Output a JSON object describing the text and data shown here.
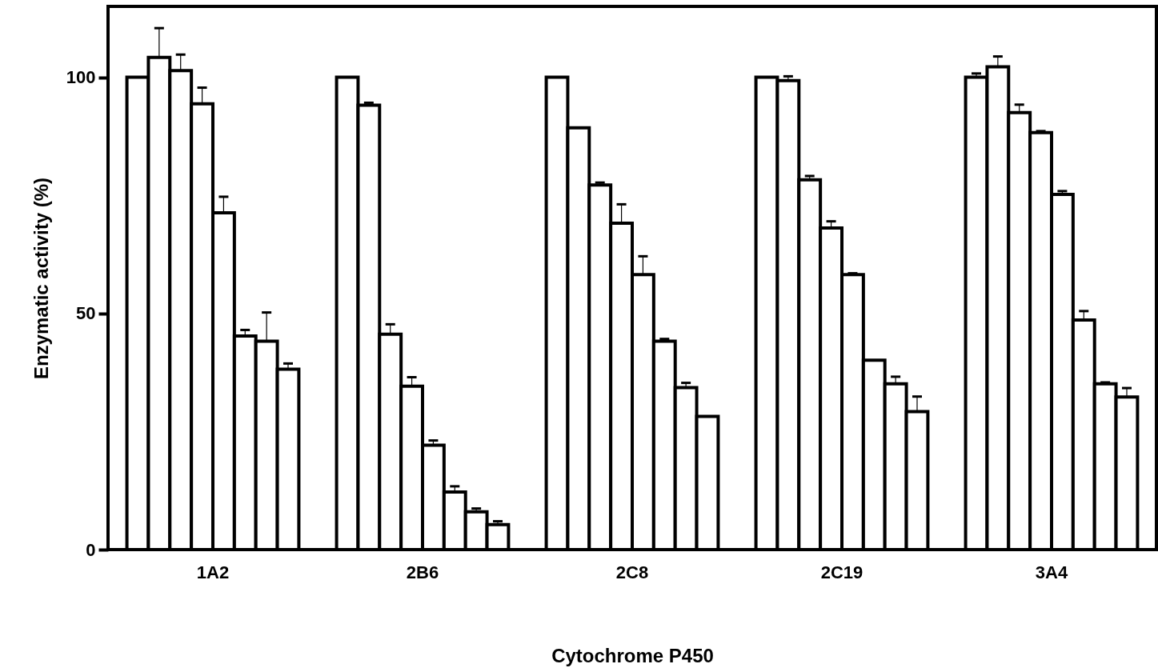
{
  "chart_data": {
    "type": "bar",
    "xlabel": "Cytochrome P450",
    "ylabel": "Enzymatic activity (%)",
    "categories": [
      "1A2",
      "2B6",
      "2C8",
      "2C19",
      "3A4"
    ],
    "ylim": [
      0,
      115
    ],
    "yticks": [
      0,
      50,
      100
    ],
    "series": [
      {
        "color": "#ffffff",
        "values": [
          100,
          100,
          100,
          100,
          100
        ],
        "errors": [
          null,
          null,
          null,
          null,
          [
            100,
            100.8
          ]
        ]
      },
      {
        "color": "#ffffff",
        "values": [
          104.2,
          94.1,
          89.3,
          99.3,
          102.2
        ],
        "errors": [
          [
            104.2,
            110.4
          ],
          [
            94.1,
            94.6
          ],
          null,
          [
            99.3,
            100.2
          ],
          [
            102.2,
            104.4
          ]
        ]
      },
      {
        "color": "#ffffff",
        "values": [
          101.4,
          45.6,
          77.2,
          78.3,
          92.5
        ],
        "errors": [
          [
            101.4,
            104.8
          ],
          [
            45.6,
            47.7
          ],
          [
            77.2,
            77.7
          ],
          [
            78.3,
            79.1
          ],
          [
            92.5,
            94.2
          ]
        ]
      },
      {
        "color": "#ffffff",
        "values": [
          94.4,
          34.6,
          69.1,
          68.1,
          88.3
        ],
        "errors": [
          [
            94.4,
            97.8
          ],
          [
            34.6,
            36.5
          ],
          [
            69.1,
            73.1
          ],
          [
            68.1,
            69.5
          ],
          [
            88.3,
            88.6
          ]
        ]
      },
      {
        "color": "#ffffff",
        "values": [
          71.3,
          22.1,
          58.2,
          58.2,
          75.2
        ],
        "errors": [
          [
            71.3,
            74.7
          ],
          [
            22.1,
            23.1
          ],
          [
            58.2,
            62.1
          ],
          [
            58.2,
            58.5
          ],
          [
            75.2,
            75.9
          ]
        ]
      },
      {
        "color": "#ffffff",
        "values": [
          45.2,
          12.2,
          44.1,
          40.1,
          48.6
        ],
        "errors": [
          [
            45.2,
            46.5
          ],
          [
            12.2,
            13.4
          ],
          [
            44.1,
            44.6
          ],
          null,
          [
            48.6,
            50.5
          ]
        ]
      },
      {
        "color": "#ffffff",
        "values": [
          44.1,
          8.0,
          34.3,
          35.1,
          35.1
        ],
        "errors": [
          [
            44.1,
            50.2
          ],
          [
            8.0,
            8.7
          ],
          [
            34.3,
            35.3
          ],
          [
            35.1,
            36.6
          ],
          [
            35.1,
            35.4
          ]
        ]
      },
      {
        "color": "#ffffff",
        "values": [
          38.2,
          5.3,
          28.2,
          29.2,
          32.3
        ],
        "errors": [
          [
            38.2,
            39.4
          ],
          [
            5.3,
            6.0
          ],
          null,
          [
            29.2,
            32.4
          ],
          [
            32.3,
            34.2
          ]
        ]
      }
    ]
  }
}
